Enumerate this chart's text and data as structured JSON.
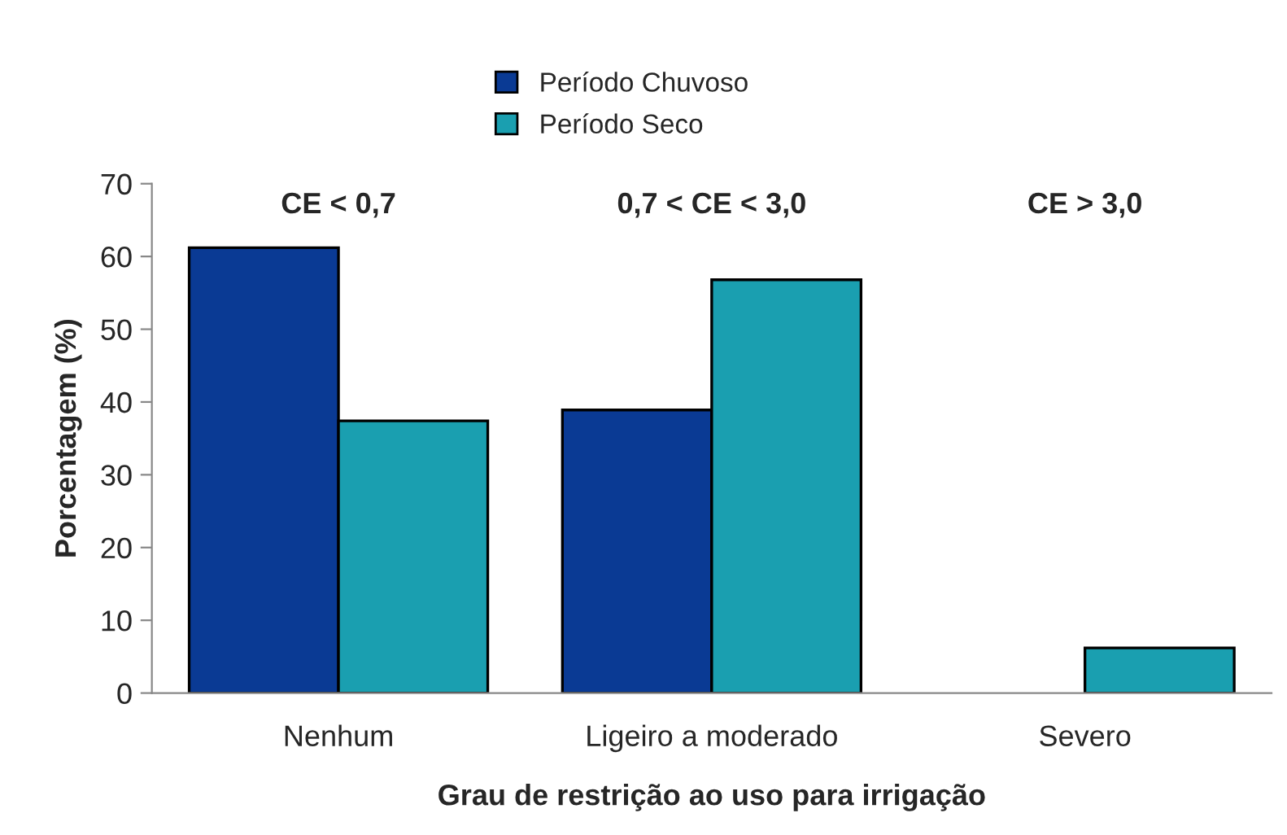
{
  "chart_data": {
    "type": "bar",
    "xlabel": "Grau de restrição ao uso para irrigação",
    "ylabel": "Porcentagem (%)",
    "categories": [
      "Nenhum",
      "Ligeiro a moderado",
      "Severo"
    ],
    "series": [
      {
        "name": "Período Chuvoso",
        "color": "#0a3a94",
        "values": [
          61.2,
          38.9,
          null
        ]
      },
      {
        "name": "Período Seco",
        "color": "#1a9fb0",
        "values": [
          37.4,
          56.8,
          6.2
        ]
      }
    ],
    "ylim": [
      0,
      70
    ],
    "yticks": [
      0,
      10,
      20,
      30,
      40,
      50,
      60,
      70
    ],
    "annotations": [
      "CE < 0,7",
      "0,7 < CE < 3,0",
      "CE > 3,0"
    ],
    "grid": false,
    "legend": "top"
  }
}
